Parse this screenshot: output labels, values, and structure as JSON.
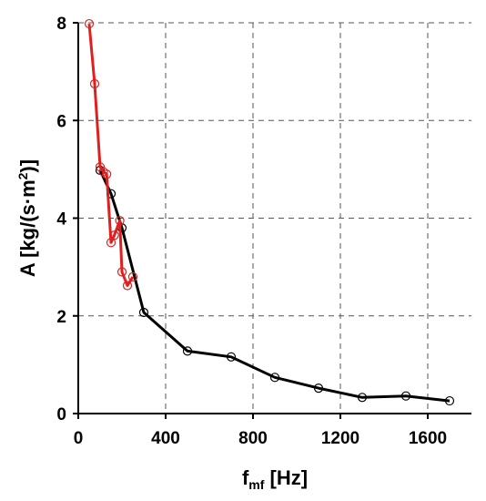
{
  "chart_data": {
    "type": "line",
    "xlabel": {
      "base": "f",
      "sub": "mf",
      "unit": " [Hz]"
    },
    "ylabel": {
      "main": "A [kg/(s·m",
      "sup": "2",
      "tail": ")]"
    },
    "xlim": [
      0,
      1800
    ],
    "ylim": [
      0,
      8
    ],
    "xticks": [
      0,
      400,
      800,
      1200,
      1600
    ],
    "yticks": [
      0,
      2,
      4,
      6,
      8
    ],
    "grid": true,
    "series": [
      {
        "color": "#000000",
        "marker": "open-circle",
        "x": [
          100,
          150,
          200,
          300,
          500,
          700,
          900,
          1100,
          1300,
          1500,
          1700
        ],
        "y": [
          4.98,
          4.5,
          3.8,
          2.07,
          1.28,
          1.16,
          0.74,
          0.52,
          0.33,
          0.36,
          0.26
        ]
      },
      {
        "color": "#e02020",
        "marker": "open-circle",
        "x": [
          50,
          75,
          100,
          115,
          130,
          150,
          165,
          190,
          200,
          225,
          250
        ],
        "y": [
          7.98,
          6.75,
          5.05,
          4.95,
          4.9,
          3.5,
          3.65,
          3.95,
          2.9,
          2.62,
          2.8
        ]
      }
    ]
  }
}
